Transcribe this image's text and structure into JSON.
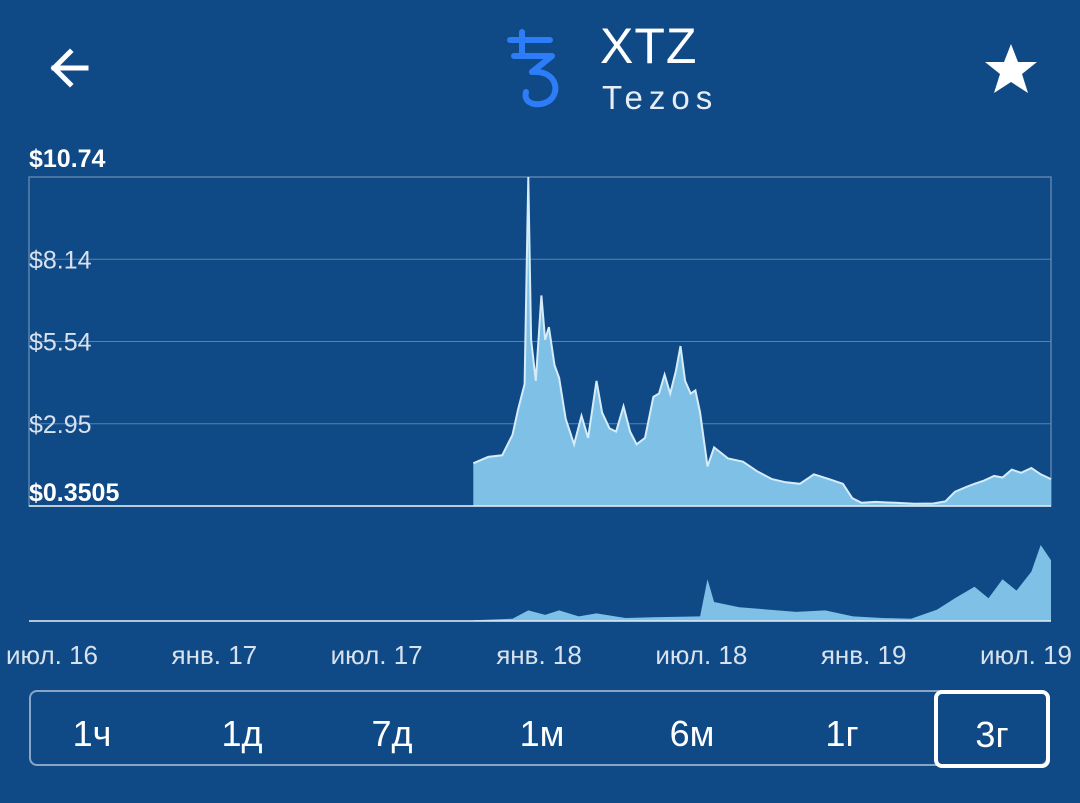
{
  "header": {
    "ticker": "XTZ",
    "name": "Tezos",
    "back_icon": "arrow-left-icon",
    "favorite_icon": "star-icon",
    "logo_icon": "tezos-logo-icon",
    "logo_color": "#2c7df7"
  },
  "colors": {
    "background": "#104a86",
    "area_fill": "#7fc0e6",
    "area_line": "#d6ecf8",
    "grid": "#5a82ad"
  },
  "chart_data": {
    "type": "area",
    "y_tick_labels": [
      "$10.74",
      "$8.14",
      "$5.54",
      "$2.95",
      "$0.3505"
    ],
    "ylim": [
      0.3505,
      10.74
    ],
    "x_tick_labels": [
      "июл. 16",
      "янв. 17",
      "июл. 17",
      "янв. 18",
      "июл. 18",
      "янв. 19",
      "июл. 19"
    ],
    "xlim": [
      "2016-07-01",
      "2019-07-01"
    ],
    "grid": true,
    "series": [
      {
        "values": [
          [
            "2017-10-20",
            1.7
          ],
          [
            "2017-11-05",
            1.9
          ],
          [
            "2017-11-20",
            1.95
          ],
          [
            "2017-12-01",
            2.6
          ],
          [
            "2017-12-07",
            3.4
          ],
          [
            "2017-12-14",
            4.2
          ],
          [
            "2017-12-18",
            10.74
          ],
          [
            "2017-12-21",
            5.6
          ],
          [
            "2017-12-26",
            4.3
          ],
          [
            "2018-01-01",
            7.0
          ],
          [
            "2018-01-05",
            5.6
          ],
          [
            "2018-01-09",
            6.0
          ],
          [
            "2018-01-15",
            4.8
          ],
          [
            "2018-01-20",
            4.4
          ],
          [
            "2018-01-27",
            3.1
          ],
          [
            "2018-02-05",
            2.3
          ],
          [
            "2018-02-13",
            3.2
          ],
          [
            "2018-02-20",
            2.5
          ],
          [
            "2018-03-01",
            4.3
          ],
          [
            "2018-03-07",
            3.3
          ],
          [
            "2018-03-15",
            2.8
          ],
          [
            "2018-03-22",
            2.7
          ],
          [
            "2018-03-30",
            3.5
          ],
          [
            "2018-04-06",
            2.7
          ],
          [
            "2018-04-13",
            2.3
          ],
          [
            "2018-04-22",
            2.5
          ],
          [
            "2018-05-01",
            3.8
          ],
          [
            "2018-05-07",
            3.9
          ],
          [
            "2018-05-13",
            4.5
          ],
          [
            "2018-05-19",
            3.9
          ],
          [
            "2018-05-25",
            4.6
          ],
          [
            "2018-05-30",
            5.4
          ],
          [
            "2018-06-04",
            4.3
          ],
          [
            "2018-06-10",
            3.9
          ],
          [
            "2018-06-15",
            4.0
          ],
          [
            "2018-06-20",
            3.3
          ],
          [
            "2018-06-28",
            1.6
          ],
          [
            "2018-07-05",
            2.2
          ],
          [
            "2018-07-20",
            1.85
          ],
          [
            "2018-08-05",
            1.75
          ],
          [
            "2018-08-20",
            1.45
          ],
          [
            "2018-09-05",
            1.2
          ],
          [
            "2018-09-20",
            1.1
          ],
          [
            "2018-10-05",
            1.05
          ],
          [
            "2018-10-20",
            1.35
          ],
          [
            "2018-11-05",
            1.2
          ],
          [
            "2018-11-20",
            1.05
          ],
          [
            "2018-11-30",
            0.6
          ],
          [
            "2018-12-10",
            0.45
          ],
          [
            "2018-12-25",
            0.48
          ],
          [
            "2019-01-15",
            0.45
          ],
          [
            "2019-02-05",
            0.42
          ],
          [
            "2019-02-25",
            0.43
          ],
          [
            "2019-03-10",
            0.5
          ],
          [
            "2019-03-20",
            0.8
          ],
          [
            "2019-04-01",
            0.95
          ],
          [
            "2019-04-10",
            1.05
          ],
          [
            "2019-04-20",
            1.15
          ],
          [
            "2019-05-01",
            1.3
          ],
          [
            "2019-05-10",
            1.25
          ],
          [
            "2019-05-20",
            1.5
          ],
          [
            "2019-05-30",
            1.4
          ],
          [
            "2019-06-10",
            1.55
          ],
          [
            "2019-06-20",
            1.35
          ],
          [
            "2019-07-01",
            1.2
          ]
        ]
      }
    ],
    "volume": [
      [
        "2017-10-20",
        0.01
      ],
      [
        "2017-12-01",
        0.03
      ],
      [
        "2017-12-18",
        0.14
      ],
      [
        "2018-01-05",
        0.08
      ],
      [
        "2018-01-20",
        0.14
      ],
      [
        "2018-02-10",
        0.06
      ],
      [
        "2018-03-01",
        0.1
      ],
      [
        "2018-04-01",
        0.04
      ],
      [
        "2018-05-01",
        0.05
      ],
      [
        "2018-06-20",
        0.06
      ],
      [
        "2018-06-28",
        0.55
      ],
      [
        "2018-07-05",
        0.25
      ],
      [
        "2018-08-01",
        0.18
      ],
      [
        "2018-09-01",
        0.15
      ],
      [
        "2018-10-01",
        0.12
      ],
      [
        "2018-11-01",
        0.14
      ],
      [
        "2018-12-01",
        0.06
      ],
      [
        "2019-01-01",
        0.04
      ],
      [
        "2019-02-01",
        0.03
      ],
      [
        "2019-03-01",
        0.15
      ],
      [
        "2019-03-20",
        0.3
      ],
      [
        "2019-04-10",
        0.45
      ],
      [
        "2019-04-25",
        0.3
      ],
      [
        "2019-05-10",
        0.55
      ],
      [
        "2019-05-25",
        0.4
      ],
      [
        "2019-06-10",
        0.65
      ],
      [
        "2019-06-20",
        1.0
      ],
      [
        "2019-07-01",
        0.8
      ]
    ]
  },
  "ranges": {
    "items": [
      "1ч",
      "1д",
      "7д",
      "1м",
      "6м",
      "1г",
      "3г"
    ],
    "active_index": 6
  }
}
